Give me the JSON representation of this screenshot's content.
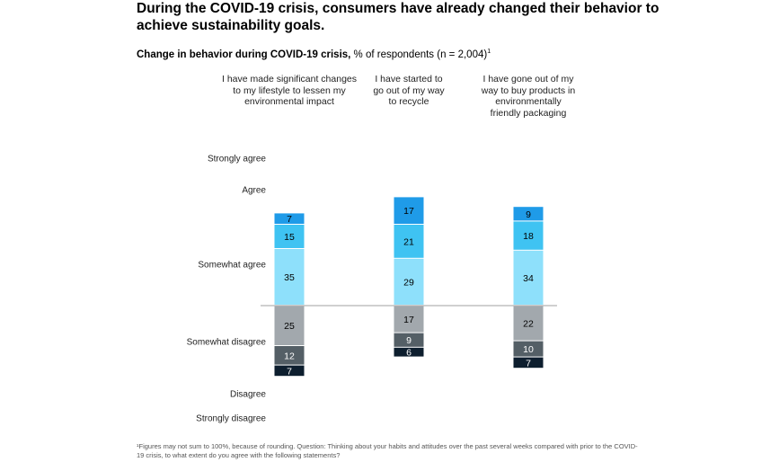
{
  "headline": "During the COVID-19 crisis, consumers have already changed their behavior to achieve sustainability goals.",
  "subtitle": {
    "bold": "Change in behavior during COVID-19 crisis,",
    "rest": " % of respondents (n = 2,004)",
    "sup": "1"
  },
  "footnote": "¹Figures may not sum to 100%, because of rounding. Question: Thinking about your habits and attitudes over the past several weeks compared with prior to the COVID-19 crisis, to what extent do you agree with the following statements?",
  "colors": {
    "strongly_agree": "#1f9be8",
    "agree": "#3fc3f2",
    "somewhat_agree": "#8ee0fb",
    "somewhat_disagree": "#a2a8ad",
    "disagree": "#545f66",
    "strongly_disagree": "#0d1e2e",
    "baseline": "#b5b5b5"
  },
  "chart_data": {
    "type": "bar",
    "stacked": "diverging",
    "categories": [
      "I have made significant changes to my lifestyle to lessen my environmental impact",
      "I have started to go out of my way to recycle",
      "I have gone out of my way to buy products in environmentally friendly packaging"
    ],
    "series": [
      {
        "name": "Strongly agree",
        "values": [
          7,
          17,
          9
        ]
      },
      {
        "name": "Agree",
        "values": [
          15,
          21,
          18
        ]
      },
      {
        "name": "Somewhat agree",
        "values": [
          35,
          29,
          34
        ]
      },
      {
        "name": "Somewhat disagree",
        "values": [
          25,
          17,
          22
        ]
      },
      {
        "name": "Disagree",
        "values": [
          12,
          9,
          10
        ]
      },
      {
        "name": "Strongly disagree",
        "values": [
          7,
          6,
          7
        ]
      }
    ]
  }
}
